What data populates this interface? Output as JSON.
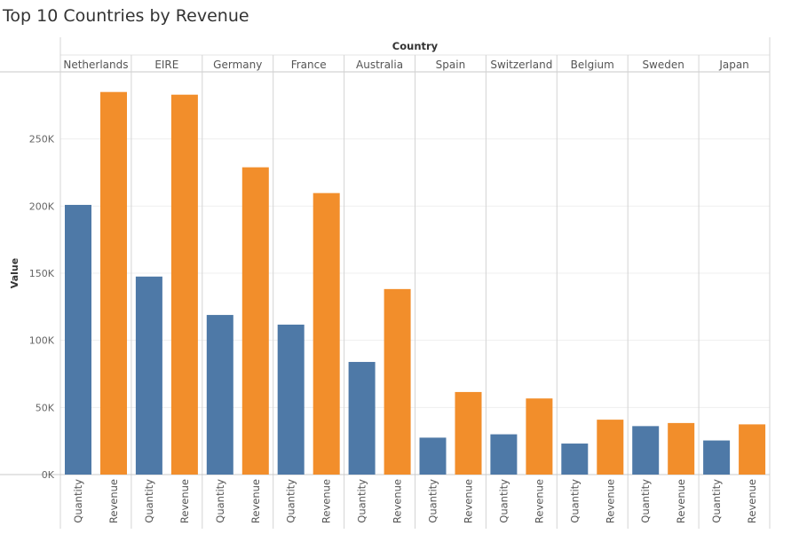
{
  "title": "Top 10 Countries by Revenue",
  "chart_data": {
    "type": "bar",
    "title": "Top 10 Countries by Revenue",
    "column_header": "Country",
    "ylabel": "Value",
    "ylim": [
      0,
      300000
    ],
    "yticks": [
      0,
      50000,
      100000,
      150000,
      200000,
      250000
    ],
    "ytick_labels": [
      "0K",
      "50K",
      "100K",
      "150K",
      "200K",
      "250K"
    ],
    "categories": [
      "Netherlands",
      "EIRE",
      "Germany",
      "France",
      "Australia",
      "Spain",
      "Switzerland",
      "Belgium",
      "Sweden",
      "Japan"
    ],
    "measures": [
      "Quantity",
      "Revenue"
    ],
    "series": [
      {
        "name": "Quantity",
        "color": "#4e79a7",
        "values": [
          200900,
          147500,
          118900,
          111700,
          83900,
          27500,
          30000,
          23100,
          36100,
          25400
        ]
      },
      {
        "name": "Revenue",
        "color": "#f28e2b",
        "values": [
          285000,
          283000,
          228900,
          209700,
          138200,
          61500,
          56700,
          40900,
          38400,
          37400
        ]
      }
    ],
    "grid": true,
    "legend": "none"
  }
}
